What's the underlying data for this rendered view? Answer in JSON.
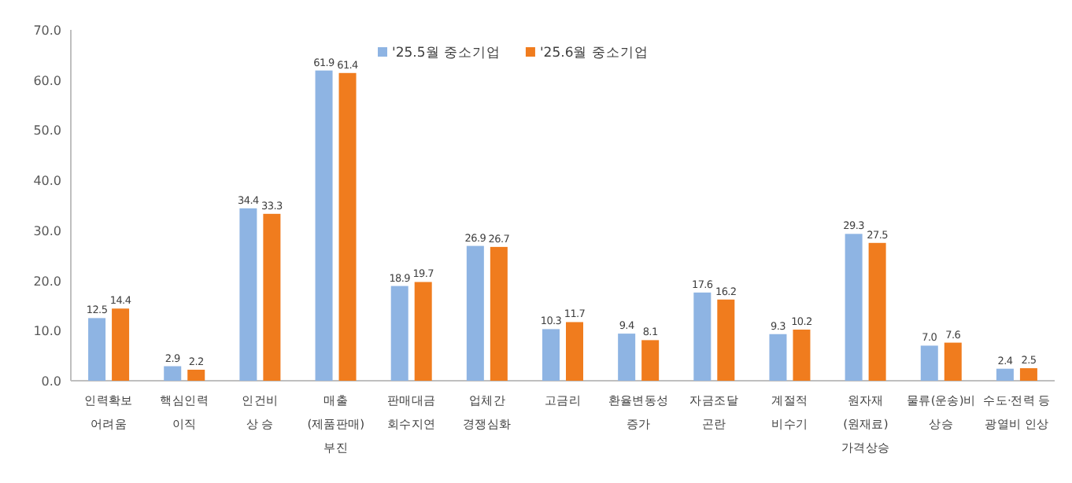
{
  "chart_data": {
    "type": "bar",
    "categories": [
      "인력확보\n어려움",
      "핵심인력\n이직",
      "인건비\n상 승",
      "매출\n(제품판매)\n부진",
      "판매대금\n회수지연",
      "업체간\n경쟁심화",
      "고금리",
      "환율변동성\n증가",
      "자금조달\n곤란",
      "계절적\n비수기",
      "원자재\n(원재료)\n가격상승",
      "물류(운송)비\n상승",
      "수도·전력 등\n광열비 인상"
    ],
    "series": [
      {
        "name": "'25.5월 중소기업",
        "color": "#8eb4e3",
        "values": [
          12.5,
          2.9,
          34.4,
          61.9,
          18.9,
          26.9,
          10.3,
          9.4,
          17.6,
          9.3,
          29.3,
          7.0,
          2.4
        ],
        "value_labels": [
          "12.5",
          "2.9",
          "34.4",
          "61.9",
          "18.9",
          "26.9",
          "10.3",
          "9.4",
          "17.6",
          "9.3",
          "29.3",
          "7.0",
          "2.4"
        ]
      },
      {
        "name": "'25.6월 중소기업",
        "color": "#f07c1e",
        "values": [
          14.4,
          2.2,
          33.3,
          61.4,
          19.7,
          26.7,
          11.7,
          8.1,
          16.2,
          10.2,
          27.5,
          7.6,
          2.5
        ],
        "value_labels": [
          "14.4",
          "2.2",
          "33.3",
          "61.4",
          "19.7",
          "26.7",
          "11.7",
          "8.1",
          "16.2",
          "10.2",
          "27.5",
          "7.6",
          "2.5"
        ]
      }
    ],
    "ylim": [
      0,
      70
    ],
    "yticks": [
      {
        "value": 0,
        "label": "0.0"
      },
      {
        "value": 10,
        "label": "10.0"
      },
      {
        "value": 20,
        "label": "20.0"
      },
      {
        "value": 30,
        "label": "30.0"
      },
      {
        "value": 40,
        "label": "40.0"
      },
      {
        "value": 50,
        "label": "50.0"
      },
      {
        "value": 60,
        "label": "60.0"
      },
      {
        "value": 70,
        "label": "70.0"
      }
    ],
    "legend": "top"
  }
}
